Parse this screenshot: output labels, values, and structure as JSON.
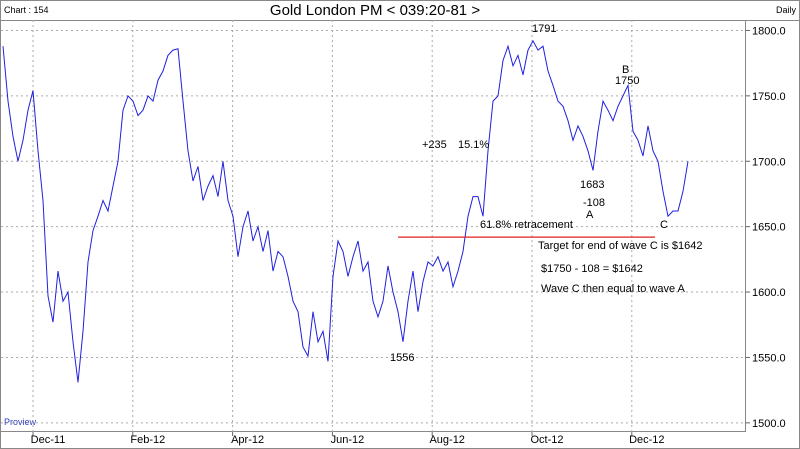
{
  "header": {
    "chart_label": "Chart : 154",
    "period": "Daily",
    "watermark": "Proview"
  },
  "chart_data": {
    "type": "line",
    "title": "Gold London PM < 039:20-81 >",
    "x_labels": [
      "Dec-11",
      "Feb-12",
      "Apr-12",
      "Jun-12",
      "Aug-12",
      "Oct-12",
      "Dec-12"
    ],
    "series": [
      {
        "name": "Gold London PM",
        "color": "#2020e0",
        "values": [
          1788,
          1746,
          1719,
          1700,
          1716,
          1739,
          1754,
          1708,
          1670,
          1597,
          1577,
          1616,
          1593,
          1600,
          1562,
          1531,
          1570,
          1623,
          1647,
          1658,
          1670,
          1662,
          1681,
          1700,
          1739,
          1750,
          1746,
          1735,
          1739,
          1750,
          1746,
          1762,
          1769,
          1781,
          1785,
          1786,
          1746,
          1708,
          1685,
          1696,
          1670,
          1681,
          1689,
          1673,
          1700,
          1670,
          1658,
          1627,
          1650,
          1662,
          1639,
          1650,
          1631,
          1647,
          1616,
          1631,
          1627,
          1612,
          1593,
          1585,
          1558,
          1551,
          1585,
          1562,
          1570,
          1547,
          1612,
          1639,
          1631,
          1612,
          1627,
          1639,
          1616,
          1623,
          1593,
          1581,
          1593,
          1620,
          1600,
          1585,
          1562,
          1593,
          1616,
          1585,
          1608,
          1623,
          1620,
          1627,
          1616,
          1623,
          1604,
          1616,
          1631,
          1658,
          1673,
          1673,
          1658,
          1708,
          1746,
          1750,
          1777,
          1788,
          1773,
          1781,
          1766,
          1785,
          1792,
          1785,
          1788,
          1769,
          1758,
          1746,
          1742,
          1731,
          1716,
          1727,
          1719,
          1708,
          1693,
          1723,
          1746,
          1739,
          1731,
          1742,
          1750,
          1758,
          1723,
          1716,
          1704,
          1727,
          1708,
          1700,
          1677,
          1658,
          1662,
          1662,
          1677,
          1700
        ]
      }
    ],
    "ylim": [
      1493,
      1808
    ],
    "yticks": [
      {
        "value": 1500,
        "label": "1500.0"
      },
      {
        "value": 1550,
        "label": "1550.0"
      },
      {
        "value": 1600,
        "label": "1600.0"
      },
      {
        "value": 1650,
        "label": "1650.0"
      },
      {
        "value": 1700,
        "label": "1700.0"
      },
      {
        "value": 1750,
        "label": "1750.0"
      },
      {
        "value": 1800,
        "label": "1800.0"
      }
    ],
    "grid": true,
    "reference_line": {
      "value": 1642,
      "color": "#e02020"
    },
    "annotations": [
      "1791",
      "B",
      "1750",
      "+235",
      "15.1%",
      "1683",
      "-108",
      "A",
      "61.8% retracement",
      "C",
      "Target for end of wave C is $1642",
      "$1750 - 108 = $1642",
      "Wave C then equal to wave A",
      "1556"
    ]
  }
}
